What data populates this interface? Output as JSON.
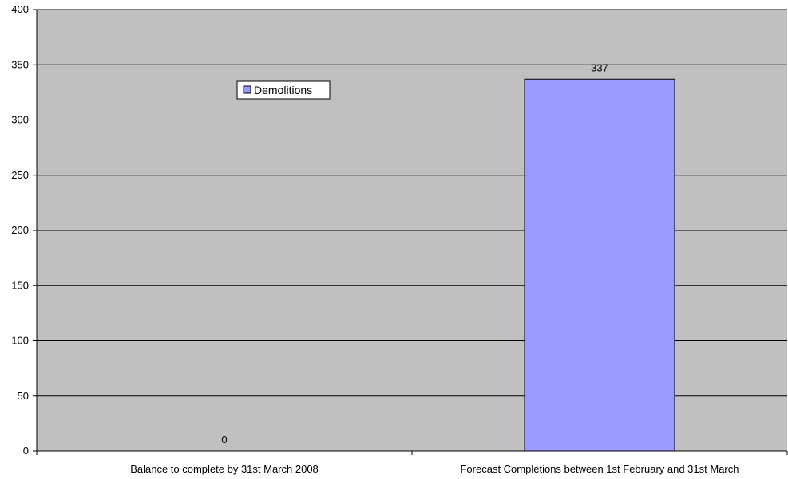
{
  "chart_data": {
    "type": "bar",
    "categories": [
      "Balance to complete by 31st March 2008",
      "Forecast Completions between 1st February and 31st March"
    ],
    "series": [
      {
        "name": "Demolitions",
        "values": [
          0,
          337
        ],
        "color": "#9999ff"
      }
    ],
    "data_labels": [
      "0",
      "337"
    ],
    "ylim": [
      0,
      400
    ],
    "yticks": [
      0,
      50,
      100,
      150,
      200,
      250,
      300,
      350,
      400
    ],
    "grid": true,
    "plot_background": "#c0c0c0",
    "legend": {
      "position": "top-left",
      "label": "Demolitions"
    }
  }
}
